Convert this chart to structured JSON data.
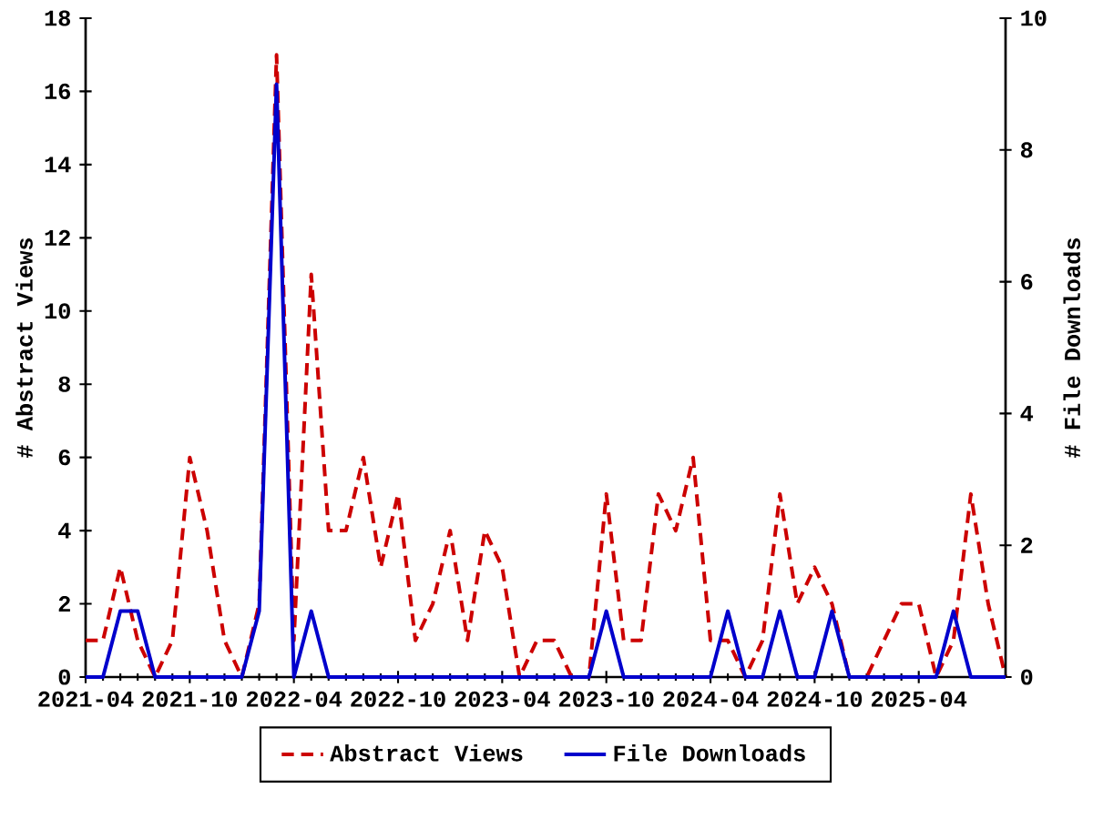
{
  "chart_data": {
    "type": "line",
    "x": [
      "2021-04",
      "2021-05",
      "2021-06",
      "2021-07",
      "2021-08",
      "2021-09",
      "2021-10",
      "2021-11",
      "2021-12",
      "2022-01",
      "2022-02",
      "2022-03",
      "2022-04",
      "2022-05",
      "2022-06",
      "2022-07",
      "2022-08",
      "2022-09",
      "2022-10",
      "2022-11",
      "2022-12",
      "2023-01",
      "2023-02",
      "2023-03",
      "2023-04",
      "2023-05",
      "2023-06",
      "2023-07",
      "2023-08",
      "2023-09",
      "2023-10",
      "2023-11",
      "2023-12",
      "2024-01",
      "2024-02",
      "2024-03",
      "2024-04",
      "2024-05",
      "2024-06",
      "2024-07",
      "2024-08",
      "2024-09",
      "2024-10",
      "2024-11",
      "2024-12",
      "2025-01",
      "2025-02",
      "2025-03",
      "2025-04",
      "2025-05",
      "2025-06",
      "2025-07",
      "2025-08",
      "2025-09"
    ],
    "series": [
      {
        "name": "Abstract Views",
        "color": "#cc0000",
        "line_style": "dashed",
        "values": [
          1,
          1,
          3,
          1,
          0,
          1,
          6,
          4,
          1,
          0,
          2,
          17,
          1,
          11,
          4,
          4,
          6,
          3,
          5,
          1,
          2,
          4,
          1,
          4,
          3,
          0,
          1,
          1,
          0,
          0,
          5,
          1,
          1,
          5,
          4,
          6,
          1,
          1,
          0,
          1,
          5,
          2,
          3,
          2,
          0,
          0,
          1,
          2,
          2,
          0,
          1,
          5,
          2,
          0
        ]
      },
      {
        "name": "File Downloads",
        "color": "#0000cc",
        "line_style": "solid",
        "axis": "y2",
        "values": [
          0,
          0,
          1,
          1,
          0,
          0,
          0,
          0,
          0,
          0,
          1,
          9,
          0,
          1,
          0,
          0,
          0,
          0,
          0,
          0,
          0,
          0,
          0,
          0,
          0,
          0,
          0,
          0,
          0,
          0,
          1,
          0,
          0,
          0,
          0,
          0,
          0,
          1,
          0,
          0,
          1,
          0,
          0,
          1,
          0,
          0,
          0,
          0,
          0,
          0,
          1,
          0,
          0,
          0
        ]
      }
    ],
    "ylabel": "# Abstract Views",
    "y2label": "# File Downloads",
    "xlim": [
      "2021-04",
      "2025-09"
    ],
    "xticks": [
      {
        "value": "2021-04",
        "label": "2021-04"
      },
      {
        "value": "2021-10",
        "label": "2021-10"
      },
      {
        "value": "2022-04",
        "label": "2022-04"
      },
      {
        "value": "2022-10",
        "label": "2022-10"
      },
      {
        "value": "2023-04",
        "label": "2023-04"
      },
      {
        "value": "2023-10",
        "label": "2023-10"
      },
      {
        "value": "2024-04",
        "label": "2024-04"
      },
      {
        "value": "2024-10",
        "label": "2024-10"
      },
      {
        "value": "2025-04",
        "label": "2025-04"
      }
    ],
    "ylim": [
      0,
      18
    ],
    "yticks": [
      0,
      2,
      4,
      6,
      8,
      10,
      12,
      14,
      16,
      18
    ],
    "y2lim": [
      0,
      10
    ],
    "y2ticks": [
      0,
      2,
      4,
      6,
      8,
      10
    ],
    "legend": "bottom"
  }
}
